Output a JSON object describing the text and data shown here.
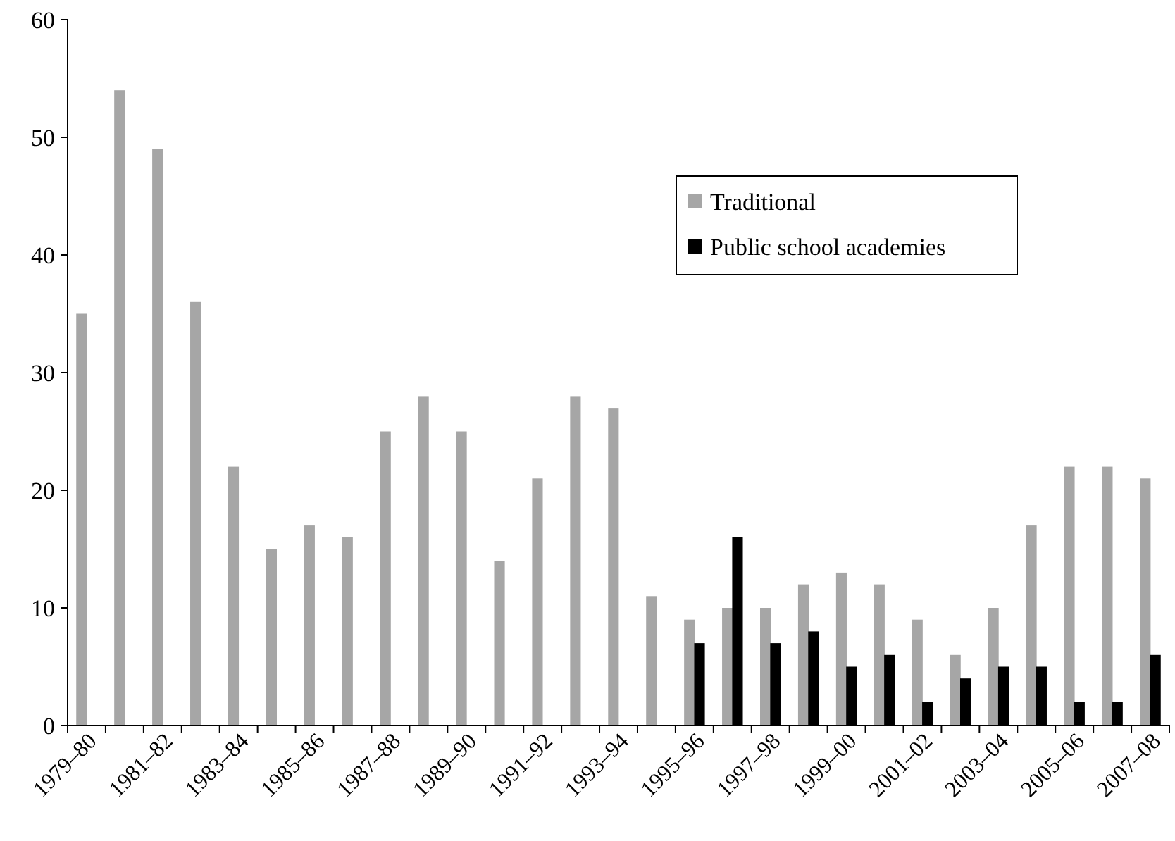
{
  "chart_data": {
    "type": "bar",
    "categories": [
      "1979–80",
      null,
      "1981–82",
      null,
      "1983–84",
      null,
      "1985–86",
      null,
      "1987–88",
      null,
      "1989–90",
      null,
      "1991–92",
      null,
      "1993–94",
      null,
      "1995–96",
      null,
      "1997–98",
      null,
      "1999–00",
      null,
      "2001–02",
      null,
      "2003–04",
      null,
      "2005–06",
      null,
      "2007–08"
    ],
    "series": [
      {
        "name": "Traditional",
        "color": "#a6a6a6",
        "values": [
          35,
          54,
          49,
          36,
          22,
          15,
          17,
          16,
          25,
          28,
          25,
          14,
          21,
          28,
          27,
          11,
          9,
          10,
          10,
          12,
          13,
          12,
          9,
          6,
          10,
          17,
          22,
          22,
          21
        ]
      },
      {
        "name": "Public school academies",
        "color": "#000000",
        "values": [
          null,
          null,
          null,
          null,
          null,
          null,
          null,
          null,
          null,
          null,
          null,
          null,
          null,
          null,
          null,
          null,
          7,
          16,
          7,
          8,
          5,
          6,
          2,
          4,
          5,
          5,
          2,
          2,
          6
        ]
      }
    ],
    "ylim": [
      0,
      60
    ],
    "yticks": [
      0,
      10,
      20,
      30,
      40,
      50,
      60
    ],
    "grid": false,
    "legend": "top right"
  }
}
